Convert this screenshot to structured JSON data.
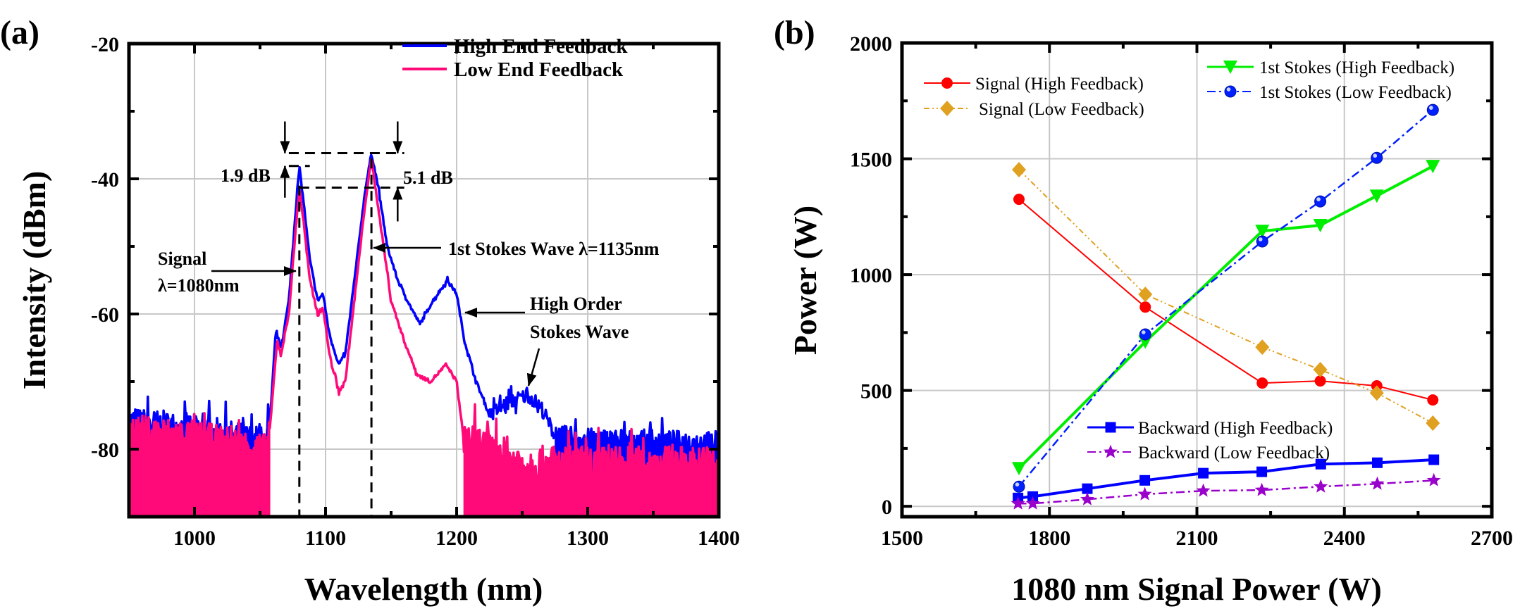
{
  "chart_data": [
    {
      "panel_label": "(a)",
      "type": "line",
      "xlabel": "Wavelength (nm)",
      "ylabel": "Intensity (dBm)",
      "xlim": [
        950,
        1400
      ],
      "ylim": [
        -90,
        -20
      ],
      "xticks": [
        1000,
        1100,
        1200,
        1300,
        1400
      ],
      "yticks": [
        -20,
        -40,
        -60,
        -80
      ],
      "grid": true,
      "legend_position": "top-right",
      "series": [
        {
          "name": "High End Feedback",
          "color": "#0000ff",
          "x": [
            950,
            1000,
            1055,
            1058,
            1062,
            1066,
            1072,
            1077,
            1080,
            1083,
            1088,
            1094,
            1098,
            1103,
            1110,
            1115,
            1122,
            1130,
            1135,
            1140,
            1147,
            1155,
            1165,
            1172,
            1182,
            1193,
            1200,
            1206,
            1215,
            1225,
            1240,
            1255,
            1265,
            1275,
            1300,
            1400
          ],
          "y": [
            -76,
            -77,
            -79,
            -75,
            -62.5,
            -65,
            -58,
            -45,
            -38.3,
            -43,
            -52,
            -58,
            -57,
            -63,
            -67.5,
            -66,
            -55,
            -42,
            -36.2,
            -41,
            -50,
            -55,
            -59,
            -61.5,
            -58,
            -55,
            -57,
            -64,
            -70,
            -75,
            -73,
            -72,
            -74,
            -78,
            -78.5,
            -79
          ]
        },
        {
          "name": "Low End Feedback",
          "color": "#ff0a78",
          "x": [
            950,
            1000,
            1055,
            1058,
            1063,
            1066,
            1072,
            1077,
            1080,
            1083,
            1088,
            1094,
            1098,
            1103,
            1110,
            1115,
            1122,
            1130,
            1135,
            1140,
            1150,
            1160,
            1170,
            1180,
            1192,
            1200,
            1205,
            1250,
            1300,
            1400
          ],
          "y": [
            -77,
            -78,
            -80,
            -76,
            -64,
            -66,
            -60,
            -48,
            -41.3,
            -46,
            -55,
            -60,
            -59,
            -66,
            -71.5,
            -70,
            -58,
            -44,
            -37,
            -44,
            -58,
            -64,
            -69,
            -70,
            -67.5,
            -70,
            -78,
            -82,
            -82,
            -82
          ]
        }
      ],
      "annotations": {
        "diff_1": "1.9 dB",
        "diff_2": "5.1 dB",
        "signal_line1": "Signal",
        "signal_line2": "λ=1080nm",
        "stokes1": "1st Stokes Wave λ=1135nm",
        "high_order_line1": "High Order",
        "high_order_line2": "Stokes Wave"
      },
      "reference_levels_dBm": [
        -36.2,
        -38.1,
        -41.3
      ],
      "reference_wavelengths_nm": [
        1080,
        1135
      ]
    },
    {
      "panel_label": "(b)",
      "type": "line",
      "xlabel": "1080 nm Signal Power (W)",
      "ylabel": "Power (W)",
      "xlim": [
        1500,
        2700
      ],
      "ylim": [
        -45,
        2000
      ],
      "xticks": [
        1500,
        1800,
        2100,
        2400,
        2700
      ],
      "yticks": [
        0,
        500,
        1000,
        1500,
        2000
      ],
      "grid": true,
      "series": [
        {
          "name": "Signal (High Feedback)",
          "color": "#ff0000",
          "marker": "circle",
          "dash": "solid",
          "x": [
            1738,
            1995,
            2233,
            2351,
            2466,
            2580
          ],
          "y": [
            1325,
            860,
            532,
            541,
            520,
            459
          ]
        },
        {
          "name": "Signal (Low Feedback)",
          "color": "#e0a020",
          "marker": "diamond",
          "dash": "dash-dot-dot",
          "x": [
            1738,
            1995,
            2233,
            2351,
            2466,
            2580
          ],
          "y": [
            1453,
            915,
            687,
            590,
            489,
            359
          ]
        },
        {
          "name": "1st Stokes (High Feedback)",
          "color": "#00ee00",
          "marker": "triangle-down",
          "dash": "solid",
          "x": [
            1738,
            1995,
            2233,
            2351,
            2466,
            2580
          ],
          "y": [
            164,
            710,
            1188,
            1213,
            1340,
            1468
          ]
        },
        {
          "name": "1st Stokes (Low Feedback)",
          "color": "#0020ff",
          "marker": "sphere",
          "dash": "dash-dot",
          "x": [
            1738,
            1995,
            2233,
            2351,
            2466,
            2580
          ],
          "y": [
            85,
            742,
            1143,
            1316,
            1504,
            1711
          ]
        },
        {
          "name": "Backward (High Feedback)",
          "color": "#0000ff",
          "marker": "square",
          "dash": "solid",
          "x": [
            1736,
            1766,
            1877,
            1994,
            2113,
            2232,
            2352,
            2467,
            2582
          ],
          "y": [
            36,
            42,
            76,
            112,
            143,
            149,
            182,
            188,
            201
          ]
        },
        {
          "name": "Backward (Low Feedback)",
          "color": "#9900cc",
          "marker": "star",
          "dash": "dash-dot",
          "x": [
            1736,
            1766,
            1877,
            1994,
            2113,
            2232,
            2352,
            2467,
            2582
          ],
          "y": [
            12,
            12,
            30,
            52,
            67,
            70,
            85,
            97,
            112
          ]
        }
      ]
    }
  ]
}
